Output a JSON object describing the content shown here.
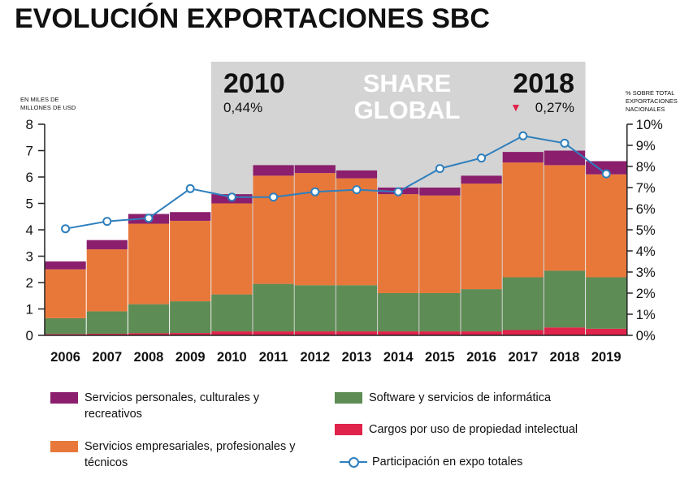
{
  "chart_data": {
    "type": "bar",
    "title": "EVOLUCIÓN EXPORTACIONES SBC",
    "ylabel_left": "EN MILES DE MILLONES DE USD",
    "ylabel_right": "% SOBRE TOTAL EXPORTACIONES NACIONALES",
    "ylim_left": [
      0,
      8
    ],
    "ylim_right": [
      0,
      10
    ],
    "yticks_left": [
      "0",
      "1",
      "2",
      "3",
      "4",
      "5",
      "6",
      "7",
      "8"
    ],
    "yticks_right": [
      "0%",
      "1%",
      "2%",
      "3%",
      "4%",
      "5%",
      "6%",
      "7%",
      "8%",
      "9%",
      "10%"
    ],
    "categories": [
      "2006",
      "2007",
      "2008",
      "2009",
      "2010",
      "2011",
      "2012",
      "2013",
      "2014",
      "2015",
      "2016",
      "2017",
      "2018",
      "2019"
    ],
    "stacked": true,
    "series": [
      {
        "name": "Cargos por uso de propiedad intelectual",
        "color": "#e0234a",
        "values": [
          0.05,
          0.06,
          0.08,
          0.09,
          0.15,
          0.15,
          0.15,
          0.15,
          0.15,
          0.15,
          0.15,
          0.2,
          0.3,
          0.25
        ]
      },
      {
        "name": "Software y servicios de informática",
        "color": "#5e8c55",
        "values": [
          0.6,
          0.85,
          1.1,
          1.2,
          1.4,
          1.8,
          1.75,
          1.75,
          1.45,
          1.45,
          1.6,
          2.0,
          2.15,
          1.95
        ]
      },
      {
        "name": "Servicios empresariales, profesionales y técnicos",
        "color": "#e8783a",
        "values": [
          1.85,
          2.35,
          3.05,
          3.05,
          3.45,
          4.1,
          4.25,
          4.05,
          3.75,
          3.7,
          4.0,
          4.35,
          4.0,
          3.9
        ]
      },
      {
        "name": "Servicios personales, culturales y recreativos",
        "color": "#8b1f6e",
        "values": [
          0.3,
          0.35,
          0.37,
          0.33,
          0.35,
          0.4,
          0.3,
          0.3,
          0.25,
          0.3,
          0.3,
          0.4,
          0.55,
          0.5
        ]
      }
    ],
    "line": {
      "name": "Participación en expo totales",
      "color": "#2e7fbd",
      "axis": "right",
      "values": [
        5.05,
        5.4,
        5.55,
        6.95,
        6.55,
        6.55,
        6.8,
        6.9,
        6.8,
        7.9,
        8.4,
        9.45,
        9.1,
        7.65
      ]
    },
    "highlight": {
      "from": "2010",
      "to": "2018",
      "label": "SHARE GLOBAL",
      "label_line1": "SHARE",
      "label_line2": "GLOBAL",
      "start_year": "2010",
      "start_value": "0,44%",
      "end_year": "2018",
      "end_value": "0,27%",
      "end_indicator": "▼"
    }
  },
  "legend": {
    "items": [
      {
        "label": "Servicios personales, culturales y recreativos",
        "color": "#8b1f6e"
      },
      {
        "label": "Software y servicios de informática",
        "color": "#5e8c55"
      },
      {
        "label": "Cargos por uso de propiedad intelectual",
        "color": "#e0234a"
      },
      {
        "label": "Servicios empresariales, profesionales y técnicos",
        "color": "#e8783a"
      },
      {
        "label": "Participación en expo totales",
        "color": "#2e7fbd"
      }
    ]
  }
}
